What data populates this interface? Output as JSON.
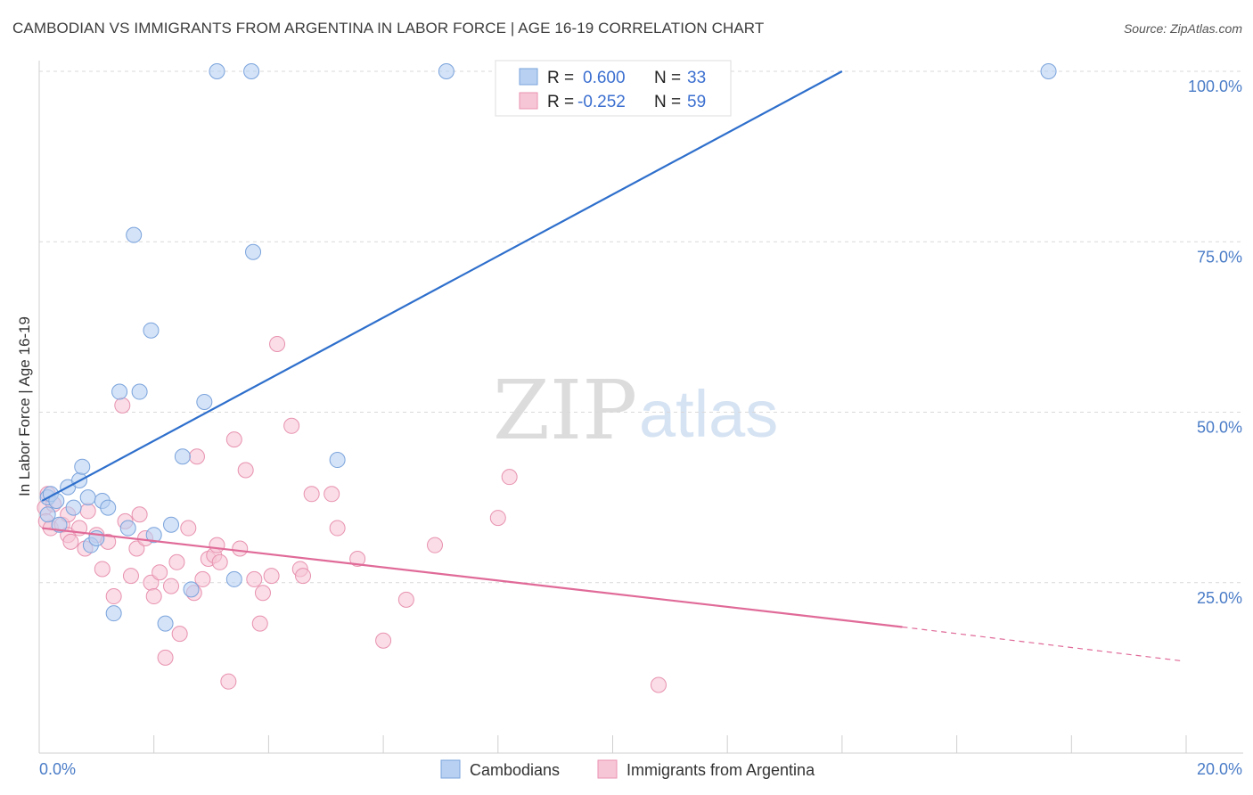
{
  "header": {
    "title": "CAMBODIAN VS IMMIGRANTS FROM ARGENTINA IN LABOR FORCE | AGE 16-19 CORRELATION CHART",
    "source": "Source: ZipAtlas.com"
  },
  "watermark": {
    "zip": "ZIP",
    "atlas": "atlas"
  },
  "colors": {
    "blue_fill": "#b8d0f2",
    "blue_stroke": "#7aa3dc",
    "blue_line": "#2e6fcc",
    "pink_fill": "#f7c6d6",
    "pink_stroke": "#e892b0",
    "pink_line": "#e06a98",
    "grid": "#d9d9d9",
    "tick_text": "#4a7cc7"
  },
  "chart_data": {
    "type": "scatter",
    "title": "CAMBODIAN VS IMMIGRANTS FROM ARGENTINA IN LABOR FORCE | AGE 16-19 CORRELATION CHART",
    "xlabel": "",
    "ylabel": "In Labor Force | Age 16-19",
    "xlim": [
      0,
      20
    ],
    "ylim": [
      0,
      102
    ],
    "x_tick_labels": [
      "0.0%",
      "20.0%"
    ],
    "y_ticks": [
      25,
      50,
      75,
      100
    ],
    "y_tick_labels": [
      "25.0%",
      "50.0%",
      "75.0%",
      "100.0%"
    ],
    "grid": true,
    "legend": {
      "placement": "top-center",
      "entries": [
        {
          "r_label": "R =",
          "r_value": "0.600",
          "n_label": "N =",
          "n_value": "33"
        },
        {
          "r_label": "R =",
          "r_value": "-0.252",
          "n_label": "N =",
          "n_value": "59"
        }
      ]
    },
    "series": [
      {
        "name": "Cambodians",
        "color": "#b8d0f2",
        "points": [
          [
            0.15,
            37.5
          ],
          [
            0.15,
            35
          ],
          [
            0.2,
            38
          ],
          [
            0.3,
            37
          ],
          [
            0.35,
            33.5
          ],
          [
            0.5,
            39
          ],
          [
            0.6,
            36
          ],
          [
            0.7,
            40
          ],
          [
            0.75,
            42
          ],
          [
            0.85,
            37.5
          ],
          [
            0.9,
            30.5
          ],
          [
            1.0,
            31.5
          ],
          [
            1.1,
            37
          ],
          [
            1.2,
            36
          ],
          [
            1.3,
            20.5
          ],
          [
            1.4,
            53
          ],
          [
            1.55,
            33
          ],
          [
            1.65,
            76
          ],
          [
            1.75,
            53
          ],
          [
            1.95,
            62
          ],
          [
            2.0,
            32
          ],
          [
            2.2,
            19
          ],
          [
            2.3,
            33.5
          ],
          [
            2.5,
            43.5
          ],
          [
            2.65,
            24
          ],
          [
            2.88,
            51.5
          ],
          [
            3.1,
            100
          ],
          [
            3.4,
            25.5
          ],
          [
            3.7,
            100
          ],
          [
            3.73,
            73.5
          ],
          [
            5.2,
            43
          ],
          [
            7.1,
            100
          ],
          [
            17.6,
            100
          ]
        ],
        "trend": {
          "x": [
            0.05,
            14.0
          ],
          "y": [
            37,
            100
          ]
        }
      },
      {
        "name": "Immigrants from Argentina",
        "color": "#f7c6d6",
        "points": [
          [
            0.1,
            36
          ],
          [
            0.12,
            34
          ],
          [
            0.15,
            38
          ],
          [
            0.2,
            33
          ],
          [
            0.25,
            36.5
          ],
          [
            0.4,
            33.5
          ],
          [
            0.5,
            35
          ],
          [
            0.5,
            32
          ],
          [
            0.55,
            31
          ],
          [
            0.7,
            33
          ],
          [
            0.8,
            30
          ],
          [
            0.85,
            35.5
          ],
          [
            1.0,
            32
          ],
          [
            1.1,
            27
          ],
          [
            1.2,
            31
          ],
          [
            1.3,
            23
          ],
          [
            1.45,
            51
          ],
          [
            1.5,
            34
          ],
          [
            1.6,
            26
          ],
          [
            1.7,
            30
          ],
          [
            1.75,
            35
          ],
          [
            1.85,
            31.5
          ],
          [
            1.95,
            25
          ],
          [
            2.0,
            23
          ],
          [
            2.1,
            26.5
          ],
          [
            2.2,
            14
          ],
          [
            2.3,
            24.5
          ],
          [
            2.4,
            28
          ],
          [
            2.45,
            17.5
          ],
          [
            2.6,
            33
          ],
          [
            2.7,
            23.5
          ],
          [
            2.75,
            43.5
          ],
          [
            2.85,
            25.5
          ],
          [
            2.95,
            28.5
          ],
          [
            3.05,
            29
          ],
          [
            3.1,
            30.5
          ],
          [
            3.15,
            28
          ],
          [
            3.3,
            10.5
          ],
          [
            3.4,
            46
          ],
          [
            3.5,
            30
          ],
          [
            3.6,
            41.5
          ],
          [
            3.75,
            25.5
          ],
          [
            3.85,
            19
          ],
          [
            3.9,
            23.5
          ],
          [
            4.05,
            26
          ],
          [
            4.15,
            60
          ],
          [
            4.4,
            48
          ],
          [
            4.55,
            27
          ],
          [
            4.6,
            26
          ],
          [
            4.75,
            38
          ],
          [
            5.1,
            38
          ],
          [
            5.2,
            33
          ],
          [
            5.55,
            28.5
          ],
          [
            6.0,
            16.5
          ],
          [
            6.4,
            22.5
          ],
          [
            6.9,
            30.5
          ],
          [
            8.0,
            34.5
          ],
          [
            8.2,
            40.5
          ],
          [
            10.8,
            10
          ]
        ],
        "trend": {
          "x": [
            0.05,
            15.05
          ],
          "y": [
            33,
            18.5
          ]
        },
        "trend_dashed": {
          "x": [
            15.05,
            19.95
          ],
          "y": [
            18.5,
            13.5
          ]
        }
      }
    ]
  },
  "legend_bottom": {
    "items": [
      {
        "label": "Cambodians"
      },
      {
        "label": "Immigrants from Argentina"
      }
    ]
  }
}
